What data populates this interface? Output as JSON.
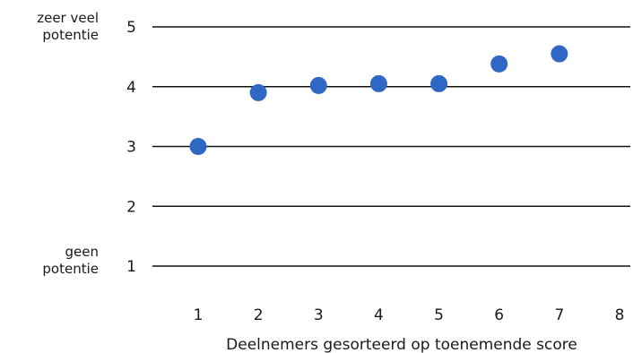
{
  "chart_data": {
    "type": "scatter",
    "xlabel": "Deelnemers gesorteerd op toenemende score",
    "ylabel": "",
    "x": [
      1,
      2,
      3,
      4,
      5,
      6,
      7
    ],
    "y": [
      3.0,
      3.9,
      4.02,
      4.05,
      4.05,
      4.38,
      4.55
    ],
    "xticks": [
      "1",
      "2",
      "3",
      "4",
      "5",
      "6",
      "7",
      "8"
    ],
    "yticks": [
      "1",
      "2",
      "3",
      "4",
      "5"
    ],
    "xlim": [
      0.2,
      8
    ],
    "ylim": [
      1,
      5
    ],
    "grid": "horizontal",
    "marker_color": "#2e67c4",
    "axis_annotations": {
      "top": "zeer veel\npotentie",
      "bottom": "geen\npotentie"
    }
  }
}
